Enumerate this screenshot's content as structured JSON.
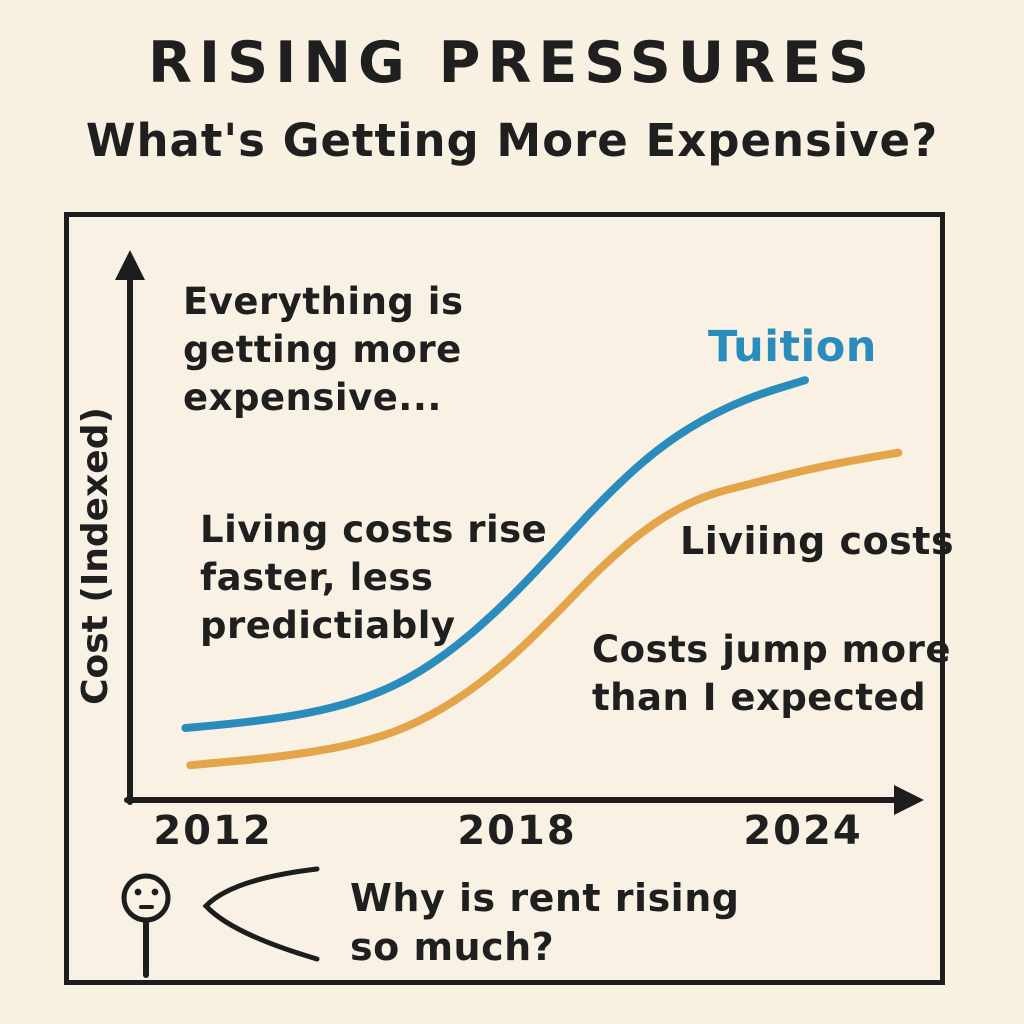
{
  "chart_data": {
    "type": "line",
    "title": "RISING PRESSURES",
    "subtitle": "What's Getting More Expensive?",
    "xlabel": "",
    "ylabel": "Cost (Indexed)",
    "x_tick_labels": [
      "2012",
      "2018",
      "2024"
    ],
    "x_range": [
      2011.5,
      2026
    ],
    "y_axis_note": "no numeric ticks; indexed cost rising, arrowed axes",
    "grid": false,
    "legend_position": "inline-labels-on-chart",
    "ink_color": "#1d1d1d",
    "background_color": "#f8f1e2",
    "series": [
      {
        "name": "Tuition",
        "color": "#2a8cbd",
        "points": [
          [
            2011.5,
            100
          ],
          [
            2012,
            101
          ],
          [
            2013,
            103.5
          ],
          [
            2014,
            107
          ],
          [
            2015,
            113
          ],
          [
            2016,
            123
          ],
          [
            2017,
            139
          ],
          [
            2018,
            160
          ],
          [
            2019,
            185
          ],
          [
            2020,
            211
          ],
          [
            2021,
            233
          ],
          [
            2022,
            249
          ],
          [
            2023,
            260
          ],
          [
            2024.1,
            268
          ]
        ]
      },
      {
        "name": "Living costs",
        "color": "#e3a44a",
        "points": [
          [
            2011.6,
            82
          ],
          [
            2012,
            83
          ],
          [
            2013,
            85
          ],
          [
            2014,
            88
          ],
          [
            2015,
            92.5
          ],
          [
            2016,
            100
          ],
          [
            2017,
            113
          ],
          [
            2018,
            131
          ],
          [
            2019,
            154
          ],
          [
            2020,
            179
          ],
          [
            2021,
            199
          ],
          [
            2022,
            212
          ],
          [
            2023,
            218
          ],
          [
            2024,
            224
          ],
          [
            2025,
            229
          ],
          [
            2026,
            233
          ]
        ]
      }
    ],
    "annotations": {
      "everything": "Everything is\ngetting more\nexpensive...",
      "tuition_label": "Tuition",
      "living_rise": "Living costs rise\nfaster, less\npredictiably",
      "living_label": "Liviing costs",
      "costs_jump": "Costs jump more\nthan I expected",
      "speech": "Why is rent rising\nso much?"
    }
  }
}
